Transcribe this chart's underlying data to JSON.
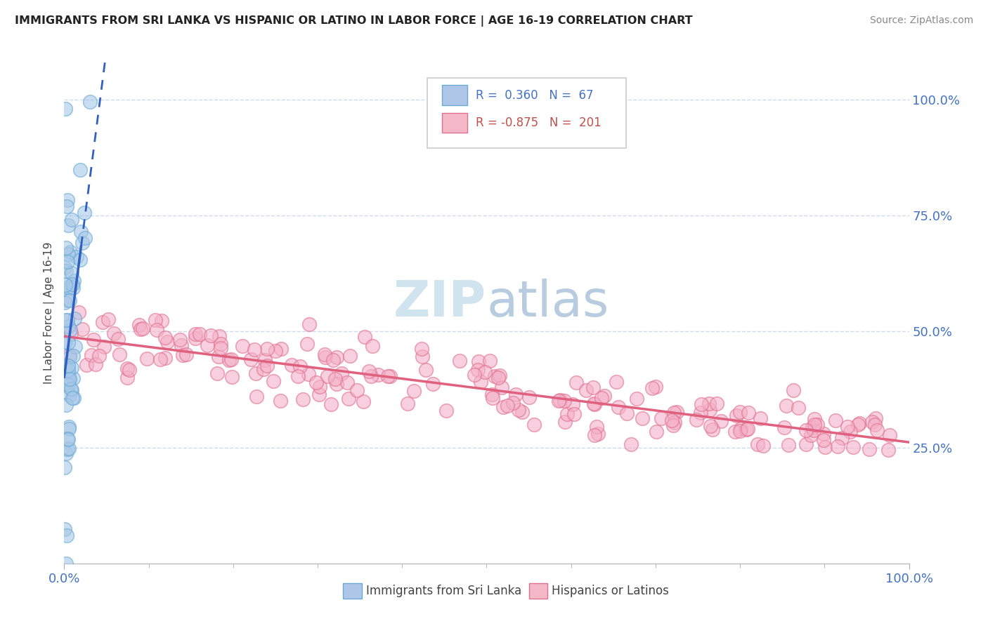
{
  "title": "IMMIGRANTS FROM SRI LANKA VS HISPANIC OR LATINO IN LABOR FORCE | AGE 16-19 CORRELATION CHART",
  "source": "Source: ZipAtlas.com",
  "ylabel": "In Labor Force | Age 16-19",
  "series1_label": "Immigrants from Sri Lanka",
  "series2_label": "Hispanics or Latinos",
  "series1_color": "#a8c8e8",
  "series1_edge_color": "#6aaad4",
  "series2_color": "#f4b0c8",
  "series2_edge_color": "#e07090",
  "series1_line_color": "#3060c0",
  "series2_line_color": "#e06080",
  "background_color": "#ffffff",
  "grid_color": "#c8d8e8",
  "tick_color": "#4472c4",
  "legend_box_color1": "#aec6e8",
  "legend_box_color2": "#f4b8c8",
  "legend_text_color1": "#4472c4",
  "legend_text_color2": "#c0504d",
  "watermark_color": "#d0e4f0",
  "series1_R": 0.36,
  "series1_N": 67,
  "series2_R": -0.875,
  "series2_N": 201
}
